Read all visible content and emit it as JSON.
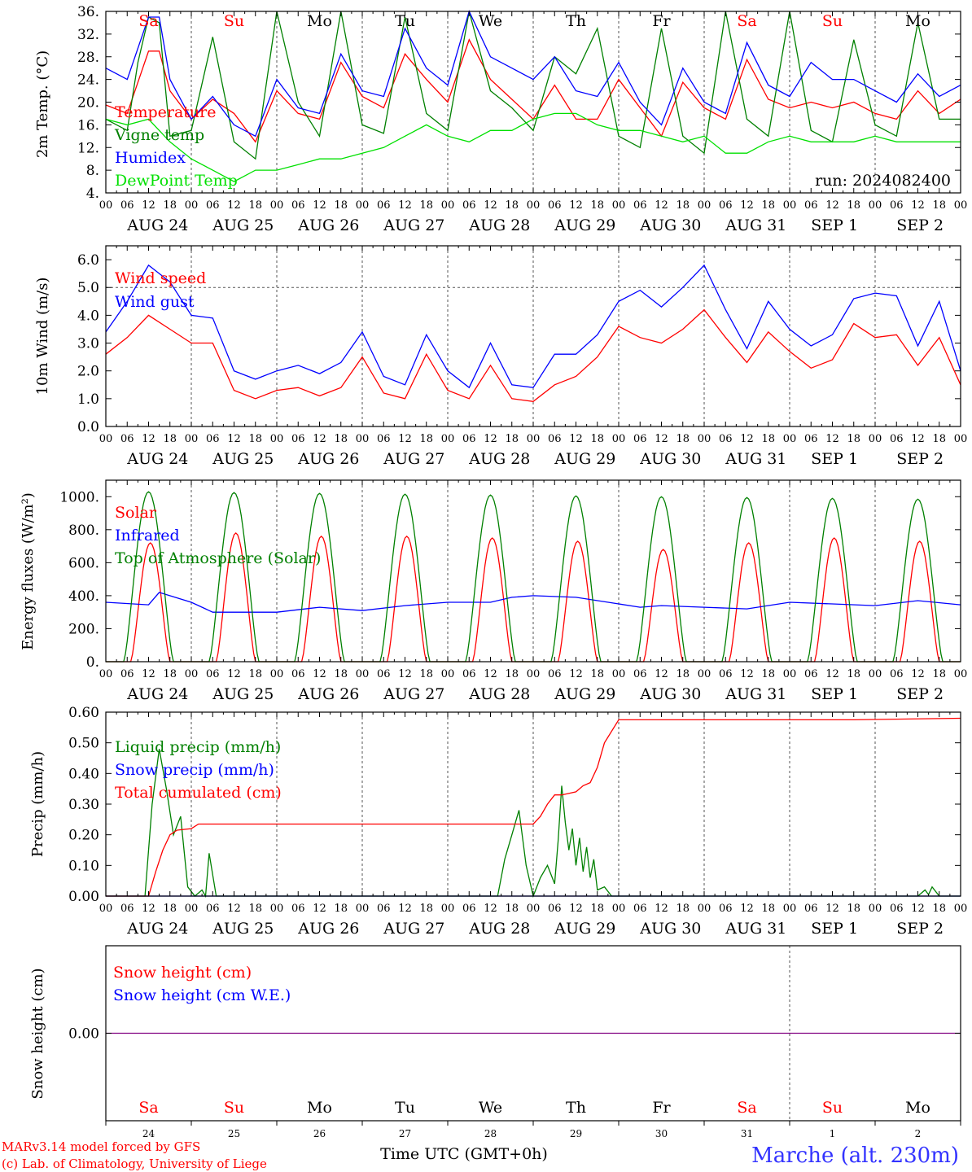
{
  "run_label": "run: 2024082400",
  "footer": {
    "credit_line1": "MARv3.14 model forced by GFS",
    "credit_line2": "(c) Lab. of Climatology, University of Liege",
    "time_axis_label": "Time UTC (GMT+0h)",
    "location": "Marche (alt. 230m)"
  },
  "colors": {
    "red": "#ff0000",
    "green": "#008000",
    "blue": "#0000ff",
    "lime": "#00e000",
    "purple": "#800080"
  },
  "days": [
    {
      "wd": "Sa",
      "date": "AUG 24",
      "num": "24",
      "weekend": true
    },
    {
      "wd": "Su",
      "date": "AUG 25",
      "num": "25",
      "weekend": true
    },
    {
      "wd": "Mo",
      "date": "AUG 26",
      "num": "26",
      "weekend": false
    },
    {
      "wd": "Tu",
      "date": "AUG 27",
      "num": "27",
      "weekend": false
    },
    {
      "wd": "We",
      "date": "AUG 28",
      "num": "28",
      "weekend": false
    },
    {
      "wd": "Th",
      "date": "AUG 29",
      "num": "29",
      "weekend": false
    },
    {
      "wd": "Fr",
      "date": "AUG 30",
      "num": "30",
      "weekend": false
    },
    {
      "wd": "Sa",
      "date": "AUG 31",
      "num": "31",
      "weekend": true
    },
    {
      "wd": "Su",
      "date": "SEP  1",
      "num": "1",
      "weekend": true
    },
    {
      "wd": "Mo",
      "date": "SEP  2",
      "num": "2",
      "weekend": false
    }
  ],
  "hour_labels": [
    "00",
    "06",
    "12",
    "18"
  ],
  "chart_data": [
    {
      "type": "line",
      "ylabel": "2m Temp. (°C)",
      "ylim": [
        4,
        36
      ],
      "yticks": [
        "4.",
        "8.",
        "12.",
        "16.",
        "20.",
        "24.",
        "28.",
        "32.",
        "36."
      ],
      "x_unit": "hours since AUG 24 00 UTC",
      "series": [
        {
          "name": "Temperature",
          "color": "red",
          "x": [
            0,
            6,
            12,
            15,
            18,
            24,
            30,
            36,
            42,
            48,
            54,
            60,
            66,
            72,
            78,
            84,
            90,
            96,
            102,
            108,
            114,
            120,
            126,
            132,
            138,
            144,
            150,
            156,
            162,
            168,
            174,
            180,
            186,
            192,
            198,
            204,
            210,
            216,
            222,
            228,
            234,
            240
          ],
          "y": [
            19.5,
            18,
            29,
            29,
            22,
            17,
            20.5,
            18,
            13,
            22,
            18,
            17,
            27,
            21,
            19,
            28.5,
            24,
            20,
            31,
            24,
            20.5,
            17,
            23,
            17,
            17,
            24,
            19,
            14,
            23.5,
            19,
            17,
            27.5,
            20.5,
            19,
            20,
            19,
            20,
            18,
            17,
            22,
            18,
            20.5
          ]
        },
        {
          "name": "Vigne temp",
          "color": "green",
          "x": [
            0,
            6,
            9,
            12,
            15,
            18,
            24,
            30,
            36,
            42,
            48,
            54,
            60,
            66,
            72,
            78,
            84,
            90,
            96,
            102,
            108,
            114,
            120,
            126,
            132,
            138,
            144,
            150,
            156,
            162,
            168,
            174,
            180,
            186,
            192,
            198,
            204,
            210,
            216,
            222,
            228,
            234,
            240
          ],
          "y": [
            17,
            15,
            27,
            35,
            34,
            14,
            15,
            31.5,
            13,
            10,
            39,
            20,
            14,
            39,
            16,
            14.5,
            35,
            18,
            15,
            37,
            22,
            19,
            15,
            28,
            25,
            33,
            14,
            12,
            33,
            14,
            11,
            36,
            17,
            14,
            37.5,
            15,
            13,
            31,
            16,
            14,
            34,
            17,
            17
          ]
        },
        {
          "name": "Humidex",
          "color": "blue",
          "x": [
            0,
            6,
            12,
            15,
            18,
            24,
            30,
            36,
            42,
            48,
            54,
            60,
            66,
            72,
            78,
            84,
            90,
            96,
            102,
            108,
            114,
            120,
            126,
            132,
            138,
            144,
            150,
            156,
            162,
            168,
            174,
            180,
            186,
            192,
            198,
            204,
            210,
            216,
            222,
            228,
            234,
            240
          ],
          "y": [
            26,
            24,
            35,
            35,
            24,
            17,
            21,
            16,
            14,
            24,
            19,
            18,
            28.5,
            22,
            21,
            33,
            26,
            23,
            36,
            28,
            26,
            24,
            28,
            22,
            21,
            27,
            20,
            16,
            26,
            20,
            18,
            30.5,
            23,
            21,
            27,
            24,
            24,
            22,
            20,
            25,
            21,
            23
          ]
        },
        {
          "name": "DewPoint Temp",
          "color": "lime",
          "x": [
            0,
            6,
            12,
            18,
            24,
            30,
            36,
            42,
            48,
            54,
            60,
            66,
            72,
            78,
            84,
            90,
            96,
            102,
            108,
            114,
            120,
            126,
            132,
            138,
            144,
            150,
            156,
            162,
            168,
            174,
            180,
            186,
            192,
            198,
            204,
            210,
            216,
            222,
            228,
            234,
            240
          ],
          "y": [
            17,
            16,
            17,
            13,
            10,
            8,
            6,
            8,
            8,
            9,
            10,
            10,
            11,
            12,
            14,
            16,
            14,
            13,
            15,
            15,
            17,
            18,
            18,
            16,
            15,
            15,
            14,
            13,
            14,
            11,
            11,
            13,
            14,
            13,
            13,
            13,
            14,
            13,
            13,
            13,
            13
          ]
        }
      ]
    },
    {
      "type": "line",
      "ylabel": "10m Wind (m/s)",
      "ylim": [
        0,
        6.5
      ],
      "yticks": [
        "0.0",
        "1.0",
        "2.0",
        "3.0",
        "4.0",
        "5.0",
        "6.0"
      ],
      "reference_line": 5.0,
      "x_unit": "hours since AUG 24 00 UTC",
      "series": [
        {
          "name": "Wind speed",
          "color": "red",
          "x": [
            0,
            6,
            12,
            18,
            24,
            30,
            36,
            42,
            48,
            54,
            60,
            66,
            72,
            78,
            84,
            90,
            96,
            102,
            108,
            114,
            120,
            126,
            132,
            138,
            144,
            150,
            156,
            162,
            168,
            174,
            180,
            186,
            192,
            198,
            204,
            210,
            216,
            222,
            228,
            234,
            240
          ],
          "y": [
            2.6,
            3.2,
            4.0,
            3.5,
            3.0,
            3.0,
            1.3,
            1.0,
            1.3,
            1.4,
            1.1,
            1.4,
            2.5,
            1.2,
            1.0,
            2.6,
            1.3,
            1.0,
            2.2,
            1.0,
            0.9,
            1.5,
            1.8,
            2.5,
            3.6,
            3.2,
            3.0,
            3.5,
            4.2,
            3.2,
            2.3,
            3.4,
            2.7,
            2.1,
            2.4,
            3.7,
            3.2,
            3.3,
            2.2,
            3.2,
            1.5
          ]
        },
        {
          "name": "Wind gust",
          "color": "blue",
          "x": [
            0,
            6,
            12,
            18,
            24,
            30,
            36,
            42,
            48,
            54,
            60,
            66,
            72,
            78,
            84,
            90,
            96,
            102,
            108,
            114,
            120,
            126,
            132,
            138,
            144,
            150,
            156,
            162,
            168,
            174,
            180,
            186,
            192,
            198,
            204,
            210,
            216,
            222,
            228,
            234,
            240
          ],
          "y": [
            3.4,
            4.5,
            5.8,
            5.2,
            4.0,
            3.9,
            2.0,
            1.7,
            2.0,
            2.2,
            1.9,
            2.3,
            3.4,
            1.8,
            1.5,
            3.3,
            2.0,
            1.4,
            3.0,
            1.5,
            1.4,
            2.6,
            2.6,
            3.3,
            4.5,
            4.9,
            4.3,
            5.0,
            5.8,
            4.2,
            2.8,
            4.5,
            3.5,
            2.9,
            3.3,
            4.6,
            4.8,
            4.7,
            2.9,
            4.5,
            2.0
          ]
        }
      ]
    },
    {
      "type": "line",
      "ylabel": "Energy fluxes (W/m²)",
      "ylim": [
        0,
        1100
      ],
      "yticks": [
        "0.",
        "200.",
        "400.",
        "600.",
        "800.",
        "1000."
      ],
      "x_unit": "hours since AUG 24 00 UTC",
      "series": [
        {
          "name": "Solar",
          "color": "red",
          "day_peaks": [
            720,
            780,
            760,
            760,
            750,
            730,
            680,
            720,
            750,
            730
          ]
        },
        {
          "name": "Infrared",
          "color": "blue",
          "x": [
            0,
            12,
            15,
            24,
            30,
            36,
            48,
            60,
            72,
            84,
            96,
            108,
            114,
            120,
            132,
            144,
            150,
            156,
            168,
            180,
            192,
            204,
            216,
            228,
            240
          ],
          "y": [
            360,
            345,
            420,
            360,
            300,
            300,
            300,
            330,
            310,
            340,
            360,
            360,
            390,
            400,
            390,
            350,
            330,
            340,
            330,
            320,
            360,
            350,
            340,
            370,
            345
          ]
        },
        {
          "name": "Top of Atmosphere (Solar)",
          "color": "green",
          "day_peaks": [
            1030,
            1025,
            1020,
            1015,
            1010,
            1005,
            1000,
            995,
            990,
            985
          ]
        }
      ]
    },
    {
      "type": "line",
      "ylabel": "Precip (mm/h)",
      "ylim": [
        0,
        0.6
      ],
      "yticks": [
        "0.00",
        "0.10",
        "0.20",
        "0.30",
        "0.40",
        "0.50",
        "0.60"
      ],
      "x_unit": "hours since AUG 24 00 UTC",
      "series": [
        {
          "name": "Liquid precip (mm/h)",
          "color": "green",
          "x": [
            0,
            11,
            13,
            15,
            17,
            19,
            21,
            23,
            25,
            27,
            28,
            29,
            31,
            40,
            110,
            112,
            114,
            116,
            118,
            120,
            122,
            124,
            126,
            127,
            128,
            129,
            130,
            131,
            132,
            133,
            134,
            135,
            136,
            137,
            138,
            140,
            142,
            144,
            228,
            230,
            231,
            232,
            234,
            240
          ],
          "y": [
            0,
            0,
            0.3,
            0.48,
            0.35,
            0.2,
            0.26,
            0.03,
            0,
            0.02,
            0,
            0.14,
            0,
            0,
            0,
            0.12,
            0.2,
            0.28,
            0.1,
            0,
            0.06,
            0.1,
            0.04,
            0.18,
            0.36,
            0.24,
            0.15,
            0.22,
            0.1,
            0.19,
            0.08,
            0.16,
            0.06,
            0.12,
            0.02,
            0.03,
            0,
            0,
            0,
            0.02,
            0.005,
            0.03,
            0,
            0
          ]
        },
        {
          "name": "Snow precip (mm/h)",
          "color": "blue",
          "x": [
            0,
            240
          ],
          "y": [
            0,
            0
          ]
        },
        {
          "name": "Total cumulated (cm)",
          "color": "red",
          "x": [
            0,
            12,
            14,
            16,
            18,
            20,
            24,
            26,
            120,
            122,
            124,
            126,
            128,
            132,
            134,
            136,
            138,
            140,
            144,
            210,
            240
          ],
          "y": [
            0,
            0,
            0.08,
            0.15,
            0.2,
            0.215,
            0.22,
            0.235,
            0.235,
            0.26,
            0.3,
            0.33,
            0.33,
            0.34,
            0.36,
            0.37,
            0.42,
            0.5,
            0.575,
            0.575,
            0.58
          ]
        }
      ]
    },
    {
      "type": "line",
      "ylabel": "Snow height (cm)",
      "ylim": [
        -1,
        1
      ],
      "yticks": [
        "0.00"
      ],
      "x_unit": "hours since AUG 24 00 UTC",
      "series": [
        {
          "name": "Snow height (cm)",
          "color": "red",
          "x": [
            0,
            240
          ],
          "y": [
            0,
            0
          ]
        },
        {
          "name": "Snow height (cm W.E.)",
          "color": "blue",
          "x": [
            0,
            240
          ],
          "y": [
            0,
            0
          ]
        }
      ]
    }
  ]
}
